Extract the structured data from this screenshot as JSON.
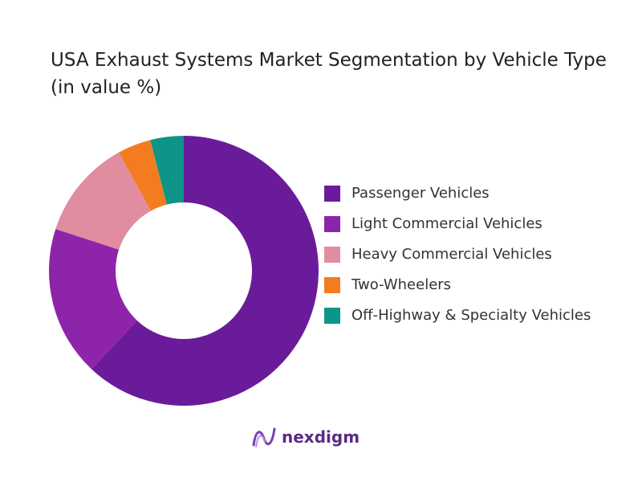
{
  "chart_data": {
    "type": "donut",
    "title": "USA Exhaust Systems Market Segmentation by Vehicle Type (in value %)",
    "categories": [
      "Passenger Vehicles",
      "Light Commercial Vehicles",
      "Heavy Commercial Vehicles",
      "Two-Wheelers",
      "Off-Highway & Specialty Vehicles"
    ],
    "values": [
      62,
      18,
      12,
      4,
      4
    ],
    "colors": [
      "#6a1b9a",
      "#8e24aa",
      "#e18c9f",
      "#f47c20",
      "#0f9488"
    ]
  },
  "brand": "nexdigm"
}
